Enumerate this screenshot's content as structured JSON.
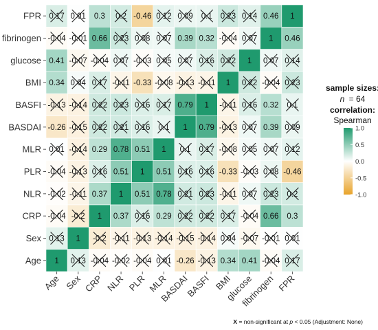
{
  "chart_data": {
    "type": "heatmap",
    "variables": [
      "Age",
      "Sex",
      "CRP",
      "NLR",
      "PLR",
      "MLR",
      "BASDAI",
      "BASFI",
      "BMI",
      "glucose",
      "fibrinogen",
      "FPR"
    ],
    "matrix": [
      [
        1,
        0.13,
        -0.04,
        -0.02,
        -0.04,
        0.01,
        -0.26,
        -0.13,
        0.34,
        0.41,
        -0.04,
        0.17
      ],
      [
        0.13,
        1,
        -0.2,
        -0.11,
        -0.13,
        -0.14,
        -0.15,
        -0.14,
        0.04,
        -0.07,
        -0.01,
        0.01
      ],
      [
        -0.04,
        -0.2,
        1,
        0.37,
        0.16,
        0.29,
        0.22,
        0.22,
        0.17,
        -0.04,
        0.66,
        0.3
      ],
      [
        -0.02,
        -0.11,
        0.37,
        1,
        0.51,
        0.78,
        0.21,
        0.23,
        -0.11,
        0.07,
        0.23,
        0.2
      ],
      [
        -0.04,
        -0.13,
        0.16,
        0.51,
        1,
        0.51,
        0.16,
        0.16,
        -0.33,
        -0.03,
        0.08,
        -0.46
      ],
      [
        0.01,
        -0.14,
        0.29,
        0.78,
        0.51,
        1,
        0.1,
        0.17,
        -0.08,
        0.05,
        0.07,
        0.12
      ],
      [
        -0.26,
        -0.15,
        0.22,
        0.21,
        0.16,
        0.1,
        1,
        0.79,
        -0.13,
        0.07,
        0.39,
        0.09
      ],
      [
        -0.13,
        -0.14,
        0.22,
        0.23,
        0.16,
        0.17,
        0.79,
        1,
        -0.11,
        0.16,
        0.32,
        0.1
      ],
      [
        0.34,
        0.04,
        0.17,
        -0.11,
        -0.33,
        -0.08,
        -0.13,
        -0.11,
        1,
        0.22,
        -0.04,
        0.23
      ],
      [
        0.41,
        -0.07,
        -0.04,
        0.07,
        -0.03,
        0.05,
        0.07,
        0.16,
        0.22,
        1,
        0.07,
        0.14
      ],
      [
        -0.04,
        -0.01,
        0.66,
        0.23,
        0.08,
        0.07,
        0.39,
        0.32,
        -0.04,
        0.07,
        1,
        0.46
      ],
      [
        0.17,
        0.01,
        0.3,
        0.2,
        -0.46,
        0.12,
        0.09,
        0.1,
        0.23,
        0.14,
        0.46,
        1
      ]
    ],
    "non_significant": [
      [
        false,
        true,
        true,
        true,
        true,
        true,
        false,
        true,
        false,
        false,
        true,
        true
      ],
      [
        true,
        false,
        true,
        true,
        true,
        true,
        true,
        true,
        true,
        true,
        true,
        true
      ],
      [
        true,
        true,
        false,
        false,
        true,
        false,
        true,
        true,
        true,
        true,
        false,
        false
      ],
      [
        true,
        true,
        false,
        false,
        false,
        false,
        true,
        true,
        true,
        true,
        true,
        true
      ],
      [
        true,
        true,
        true,
        false,
        false,
        false,
        true,
        true,
        false,
        true,
        true,
        false
      ],
      [
        true,
        true,
        false,
        false,
        false,
        false,
        true,
        true,
        true,
        true,
        true,
        true
      ],
      [
        false,
        true,
        true,
        true,
        true,
        true,
        false,
        false,
        true,
        true,
        false,
        true
      ],
      [
        true,
        true,
        true,
        true,
        true,
        true,
        false,
        false,
        true,
        true,
        false,
        true
      ],
      [
        false,
        true,
        true,
        true,
        false,
        true,
        true,
        true,
        false,
        true,
        true,
        true
      ],
      [
        false,
        true,
        true,
        true,
        true,
        true,
        true,
        true,
        true,
        false,
        true,
        true
      ],
      [
        true,
        true,
        false,
        true,
        true,
        true,
        false,
        false,
        true,
        true,
        false,
        false
      ],
      [
        true,
        true,
        false,
        true,
        false,
        true,
        true,
        true,
        true,
        true,
        false,
        false
      ]
    ],
    "color_scale": {
      "min": -1,
      "max": 1,
      "low_color": "#E8A32A",
      "mid_color": "#FFFFFF",
      "high_color": "#1F9A6E",
      "ticks": [
        "1.0",
        "0.5",
        "0.0",
        "-0.5",
        "-1.0"
      ],
      "tick_values": [
        1,
        0.5,
        0,
        -0.5,
        -1
      ]
    },
    "legend": {
      "sample_sizes_label": "sample sizes:",
      "n_label": "n",
      "n_value": "= 64",
      "correlation_label": "correlation:",
      "method": "Spearman"
    },
    "footnote": {
      "mark": "X",
      "text": " = non-significant at ",
      "p": "p",
      "rest": " < 0.05 (Adjustment: None)"
    },
    "grid": false
  }
}
